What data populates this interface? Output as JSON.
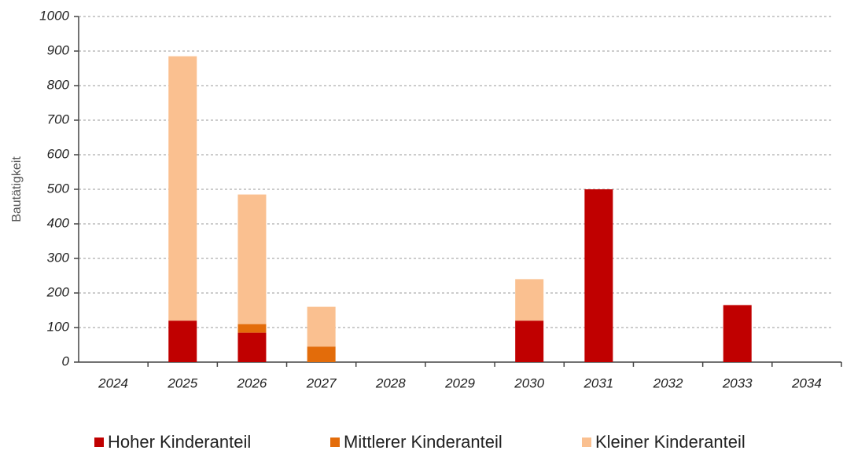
{
  "chart_data": {
    "type": "bar",
    "stacked": true,
    "y_label": "Bautätigkeit",
    "categories": [
      "2024",
      "2025",
      "2026",
      "2027",
      "2028",
      "2029",
      "2030",
      "2031",
      "2032",
      "2033",
      "2034"
    ],
    "series": [
      {
        "name": "Hoher Kinderanteil",
        "color": "#c00000",
        "values": [
          0,
          120,
          85,
          0,
          0,
          0,
          120,
          500,
          0,
          165,
          0
        ]
      },
      {
        "name": "Mittlerer Kinderanteil",
        "color": "#e36c0a",
        "values": [
          0,
          0,
          25,
          45,
          0,
          0,
          0,
          0,
          0,
          0,
          0
        ]
      },
      {
        "name": "Kleiner Kinderanteil",
        "color": "#fac090",
        "values": [
          0,
          765,
          375,
          115,
          0,
          0,
          120,
          0,
          0,
          0,
          0
        ]
      }
    ],
    "ylim": [
      0,
      1000
    ],
    "yticks": [
      0,
      100,
      200,
      300,
      400,
      500,
      600,
      700,
      800,
      900,
      1000
    ],
    "grid": true
  }
}
